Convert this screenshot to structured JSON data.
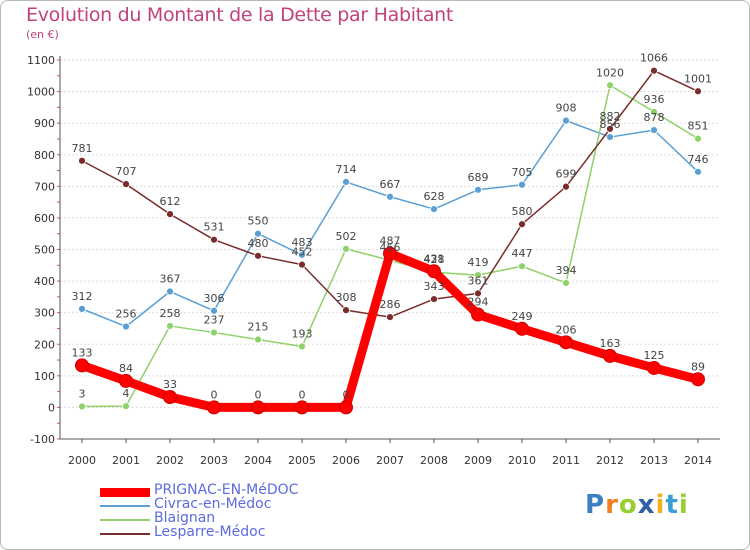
{
  "header": {
    "title": "Evolution du Montant de la Dette par Habitant",
    "unit": "(en €)"
  },
  "chart_data": {
    "type": "line",
    "x": [
      "2000",
      "2001",
      "2002",
      "2003",
      "2004",
      "2005",
      "2006",
      "2007",
      "2008",
      "2009",
      "2010",
      "2011",
      "2012",
      "2013",
      "2014"
    ],
    "ylim": [
      -100,
      1100
    ],
    "yticks": [
      "-100",
      "0",
      "100",
      "200",
      "300",
      "400",
      "500",
      "600",
      "700",
      "800",
      "900",
      "1000",
      "1100"
    ],
    "grid": "horizontal",
    "legend_placement": "bottom-left",
    "series": [
      {
        "name": "PRIGNAC-EN-MéDOC",
        "color": "#ff0000",
        "values": [
          133,
          84,
          33,
          0,
          0,
          0,
          0,
          487,
          431,
          294,
          249,
          206,
          163,
          125,
          89
        ]
      },
      {
        "name": "Civrac-en-Médoc",
        "color": "#5a9fd4",
        "values": [
          312,
          256,
          367,
          306,
          550,
          483,
          714,
          667,
          628,
          689,
          705,
          908,
          856,
          878,
          746
        ]
      },
      {
        "name": "Blaignan",
        "color": "#8fd16a",
        "values": [
          3,
          4,
          258,
          237,
          215,
          193,
          502,
          466,
          428,
          419,
          447,
          394,
          1020,
          936,
          851
        ]
      },
      {
        "name": "Lesparre-Médoc",
        "color": "#7a2b2b",
        "values": [
          781,
          707,
          612,
          531,
          480,
          452,
          308,
          286,
          343,
          361,
          580,
          699,
          882,
          1066,
          1001
        ]
      }
    ]
  },
  "logo": {
    "letters": [
      "P",
      "r",
      "o",
      "x",
      "i",
      "t",
      "i"
    ],
    "colors": [
      "#3b7fc4",
      "#f07f1f",
      "#9acd32",
      "#2b5fa8",
      "#f0b020",
      "#3b9fd4",
      "#9acd32"
    ]
  }
}
